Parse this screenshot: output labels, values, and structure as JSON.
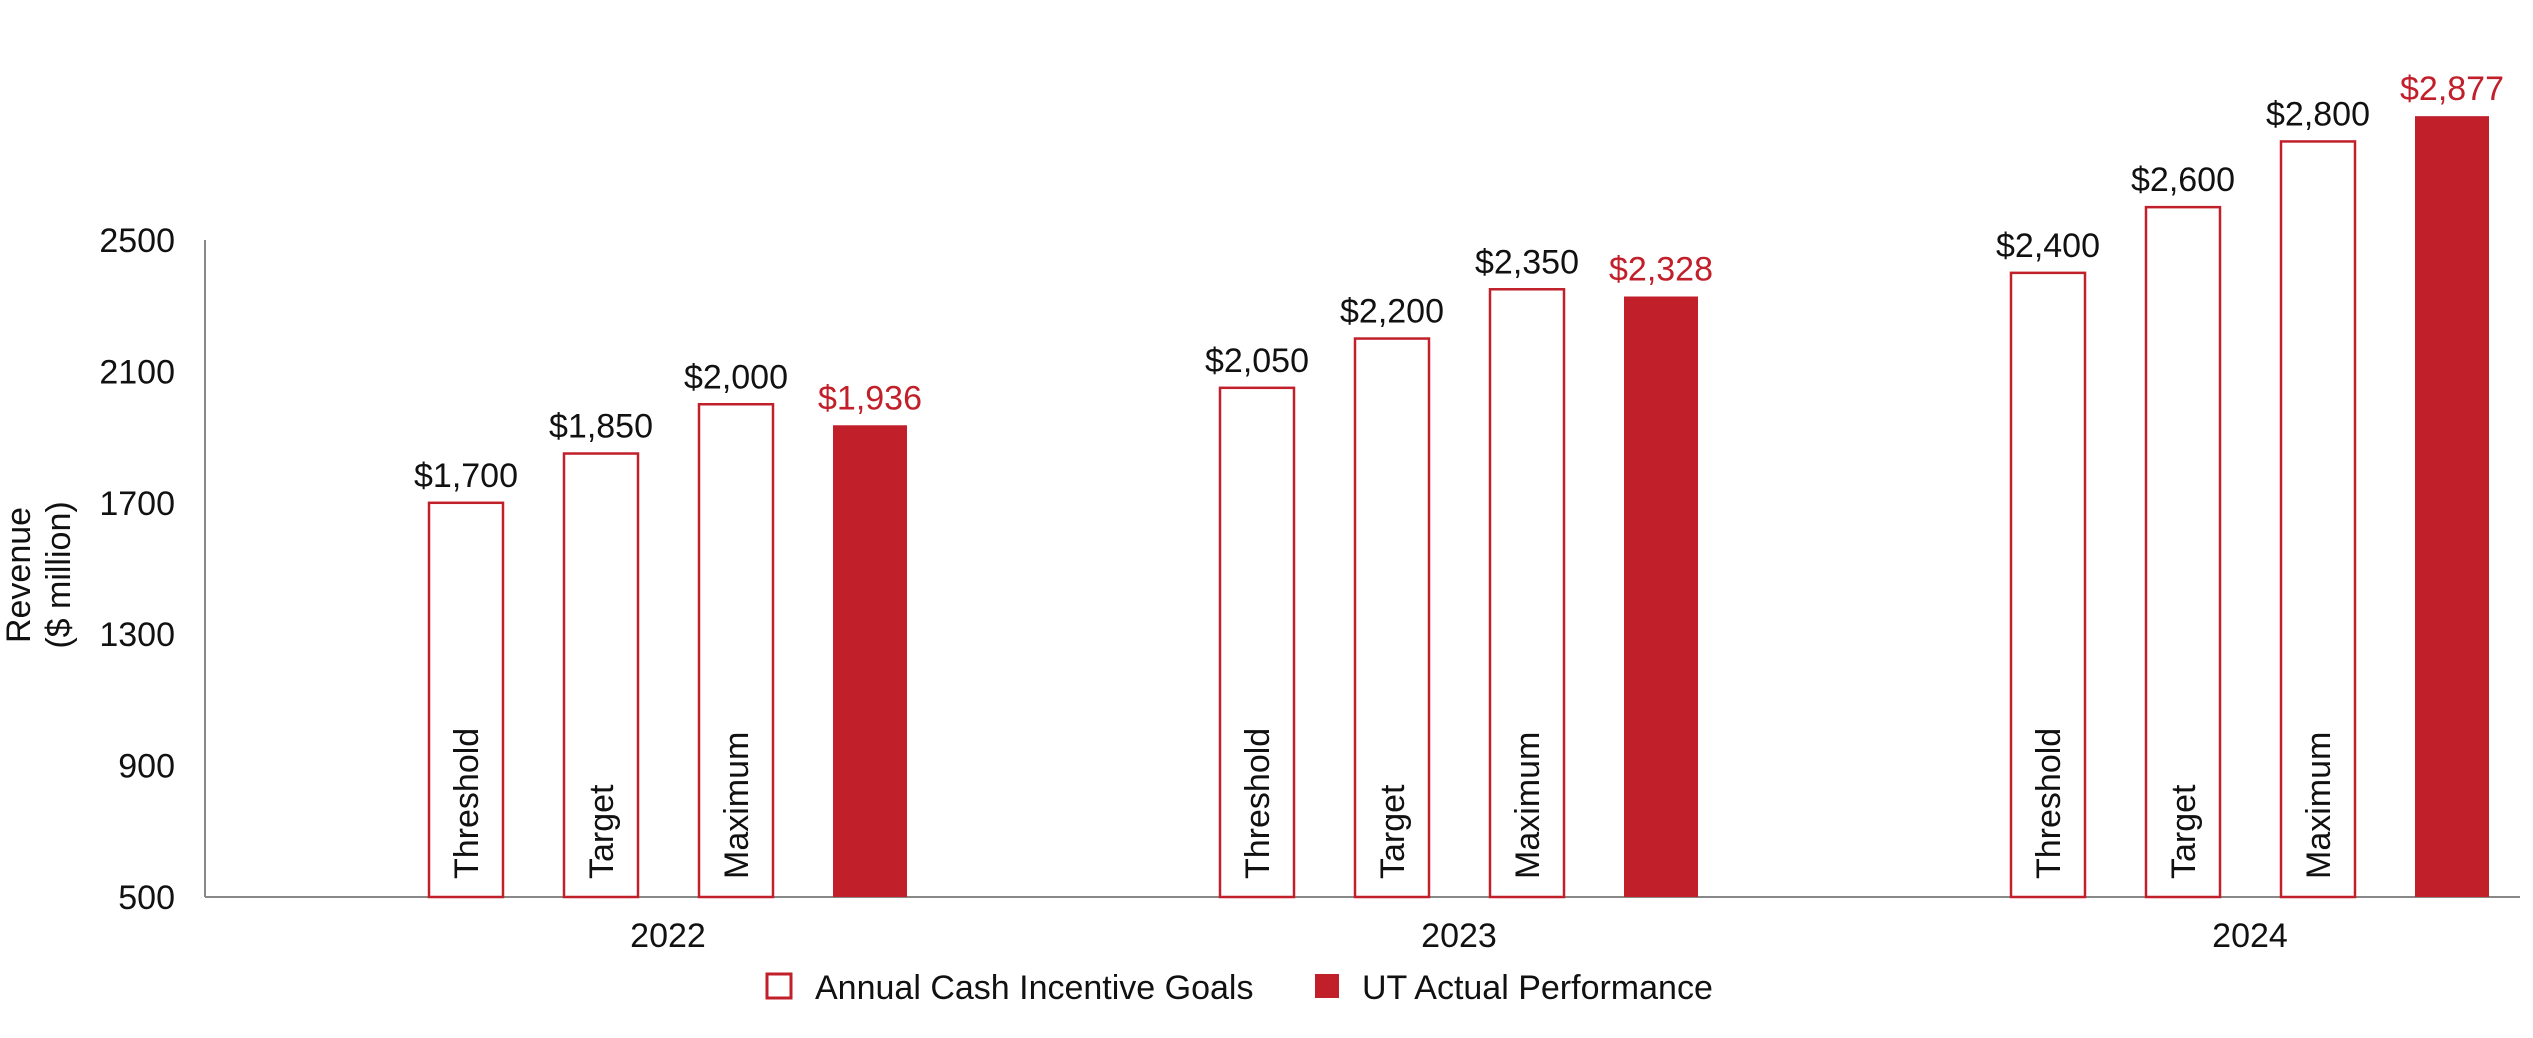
{
  "chart_data": {
    "type": "bar",
    "title": "",
    "ylabel_lines": [
      "Revenue",
      "($ million)"
    ],
    "xlabel": "",
    "ylim": [
      500,
      2500
    ],
    "yticks": [
      500,
      900,
      1300,
      1700,
      2100,
      2500
    ],
    "categories": [
      "2022",
      "2023",
      "2024"
    ],
    "bar_kinds": [
      "Threshold",
      "Target",
      "Maximum"
    ],
    "series": [
      {
        "name": "Annual Cash Incentive Goals",
        "style": "outline",
        "values": [
          [
            1700,
            1850,
            2000
          ],
          [
            2050,
            2200,
            2350
          ],
          [
            2400,
            2600,
            2800
          ]
        ],
        "value_labels": [
          [
            "$1,700",
            "$1,850",
            "$2,000"
          ],
          [
            "$2,050",
            "$2,200",
            "$2,350"
          ],
          [
            "$2,400",
            "$2,600",
            "$2,800"
          ]
        ]
      },
      {
        "name": "UT Actual Performance",
        "style": "filled",
        "values": [
          1936,
          2328,
          2877
        ],
        "value_labels": [
          "$1,936",
          "$2,328",
          "$2,877"
        ]
      }
    ],
    "legend": {
      "placement": "bottom-center"
    },
    "colors": {
      "accent": "#c1202a",
      "axis": "#888888",
      "text": "#111111"
    },
    "grid": false
  }
}
